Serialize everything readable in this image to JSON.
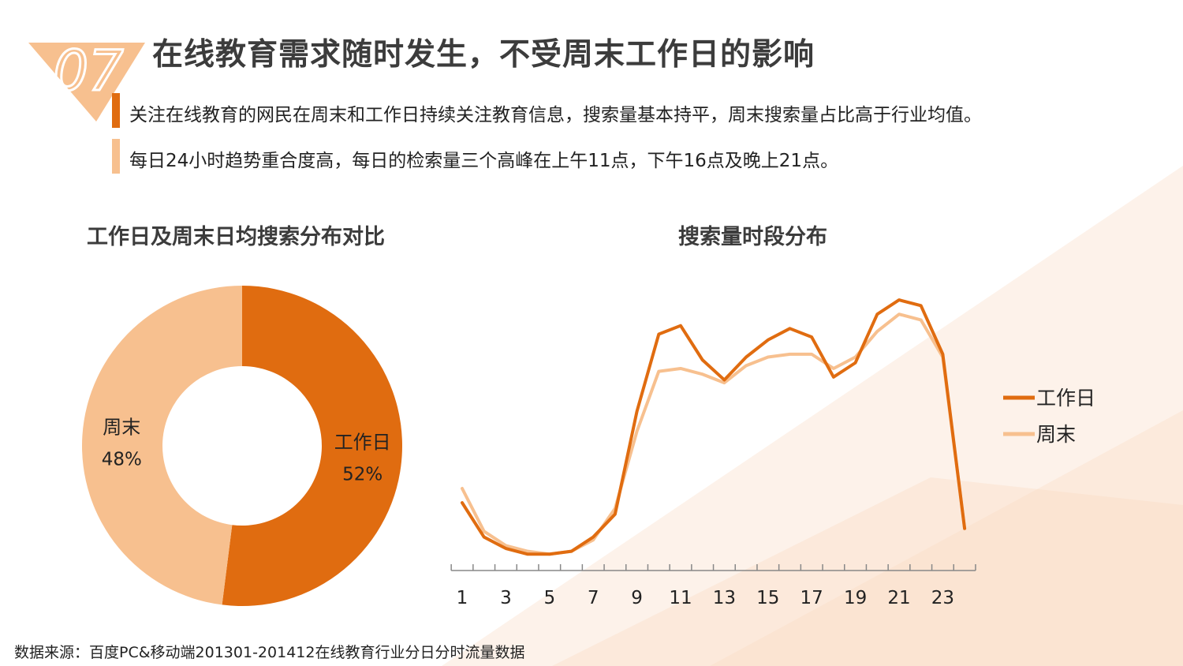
{
  "slide_number": "07",
  "title": "在线教育需求随时发生，不受周末工作日的影响",
  "bullets": [
    "关注在线教育的网民在周末和工作日持续关注教育信息，搜索量基本持平，周末搜索量占比高于行业均值。",
    "每日24小时趋势重合度高，每日的检索量三个高峰在上午11点，下午16点及晚上21点。"
  ],
  "colors": {
    "primary": "#e06c10",
    "light": "#f7c08f",
    "title": "#3c3c3c"
  },
  "source": "数据来源：百度PC&移动端201301-201412在线教育行业分日分时流量数据",
  "chart_data": [
    {
      "type": "pie",
      "title": "工作日及周末日均搜索分布对比",
      "donut": true,
      "slices": [
        {
          "label": "工作日",
          "pct_label": "52%",
          "value": 52,
          "color": "#e06c10"
        },
        {
          "label": "周末",
          "pct_label": "48%",
          "value": 48,
          "color": "#f7c08f"
        }
      ]
    },
    {
      "type": "line",
      "title": "搜索量时段分布",
      "x": [
        1,
        2,
        3,
        4,
        5,
        6,
        7,
        8,
        9,
        10,
        11,
        12,
        13,
        14,
        15,
        16,
        17,
        18,
        19,
        20,
        21,
        22,
        23,
        24
      ],
      "xtick_labels": [
        "1",
        "3",
        "5",
        "7",
        "9",
        "11",
        "13",
        "15",
        "17",
        "19",
        "21",
        "23"
      ],
      "ylim": [
        0,
        100
      ],
      "yaxis_visible": false,
      "legend_position": "right",
      "series": [
        {
          "name": "工作日",
          "color": "#e06c10",
          "values": [
            24,
            12,
            8,
            6,
            6,
            7,
            12,
            20,
            56,
            83,
            86,
            74,
            67,
            75,
            81,
            85,
            82,
            68,
            73,
            90,
            95,
            93,
            76,
            15
          ]
        },
        {
          "name": "周末",
          "color": "#f7c08f",
          "values": [
            29,
            14,
            9,
            7,
            6,
            7,
            11,
            22,
            49,
            70,
            71,
            69,
            66,
            72,
            75,
            76,
            76,
            71,
            75,
            84,
            90,
            88,
            75,
            15
          ]
        }
      ]
    }
  ]
}
